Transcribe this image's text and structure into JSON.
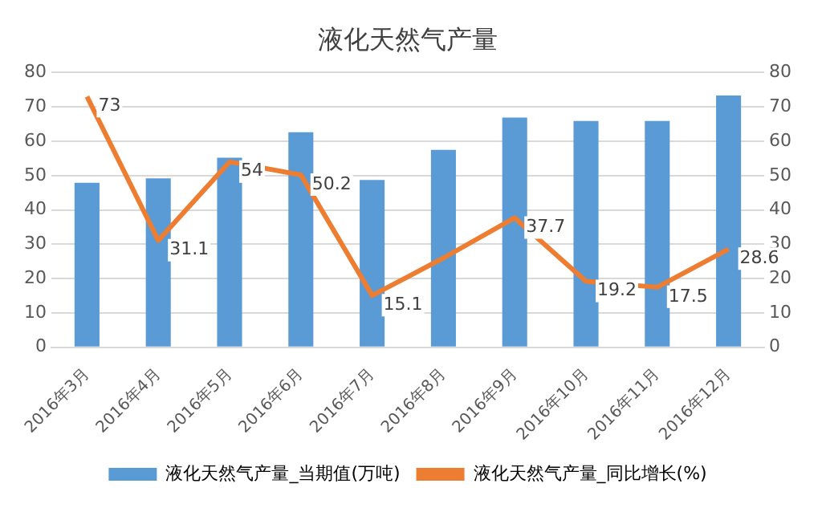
{
  "chart_data": {
    "type": "bar",
    "title": "液化天然气产量",
    "categories": [
      "2016年3月",
      "2016年4月",
      "2016年5月",
      "2016年6月",
      "2016年7月",
      "2016年8月",
      "2016年9月",
      "2016年10月",
      "2016年11月",
      "2016年12月"
    ],
    "series": [
      {
        "name": "液化天然气产量_当期值(万吨)",
        "color": "#5b9bd5",
        "values": [
          47.9,
          49.2,
          55.2,
          62.6,
          48.7,
          57.5,
          66.9,
          65.9,
          65.9,
          73.3
        ]
      },
      {
        "name": "液化天然气产量_同比增长(%)",
        "type": "line",
        "axis": "y2",
        "color": "#ed7d31",
        "values": [
          73,
          31.1,
          54,
          50.2,
          15.1,
          26,
          37.7,
          19.2,
          17.5,
          28.6
        ],
        "value_labels": [
          "73",
          "31.1",
          "54",
          "50.2",
          "15.1",
          null,
          "37.7",
          "19.2",
          "17.5",
          "28.6"
        ]
      }
    ],
    "ylim": [
      0,
      80
    ],
    "yticks": [
      0,
      10,
      20,
      30,
      40,
      50,
      60,
      70,
      80
    ],
    "y2lim": [
      0,
      80
    ],
    "y2ticks": [
      0,
      10,
      20,
      30,
      40,
      50,
      60,
      70,
      80
    ],
    "grid": "y",
    "legend": "bottom",
    "marker": "none",
    "line_style": "solid"
  }
}
